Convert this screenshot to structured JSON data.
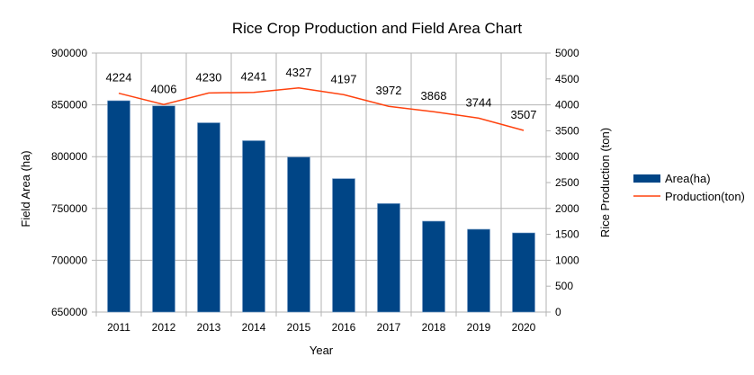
{
  "chart_data": {
    "type": "bar",
    "title": "Rice Crop Production and Field Area Chart",
    "xlabel": "Year",
    "ylabel": "Field Area (ha)",
    "y2label": "Rice Production (ton)",
    "categories": [
      "2011",
      "2012",
      "2013",
      "2014",
      "2015",
      "2016",
      "2017",
      "2018",
      "2019",
      "2020"
    ],
    "series": [
      {
        "name": "Area(ha)",
        "type": "bar",
        "axis": "left",
        "color": "#004586",
        "values": [
          854000,
          849000,
          832700,
          815400,
          799600,
          778800,
          754700,
          737700,
          729900,
          726400
        ]
      },
      {
        "name": "Production(ton)",
        "type": "line",
        "axis": "right",
        "color": "#ff420e",
        "values": [
          4224,
          4006,
          4230,
          4241,
          4327,
          4197,
          3972,
          3868,
          3744,
          3507
        ],
        "data_labels": [
          "4224",
          "4006",
          "4230",
          "4241",
          "4327",
          "4197",
          "3972",
          "3868",
          "3744",
          "3507"
        ]
      }
    ],
    "ylim": [
      650000,
      900000
    ],
    "yticks": [
      "650000",
      "700000",
      "750000",
      "800000",
      "850000",
      "900000"
    ],
    "y2lim": [
      0,
      5000
    ],
    "y2ticks": [
      "0",
      "500",
      "1000",
      "1500",
      "2000",
      "2500",
      "3000",
      "3500",
      "4000",
      "4500",
      "5000"
    ],
    "grid": true,
    "legend": "right"
  }
}
